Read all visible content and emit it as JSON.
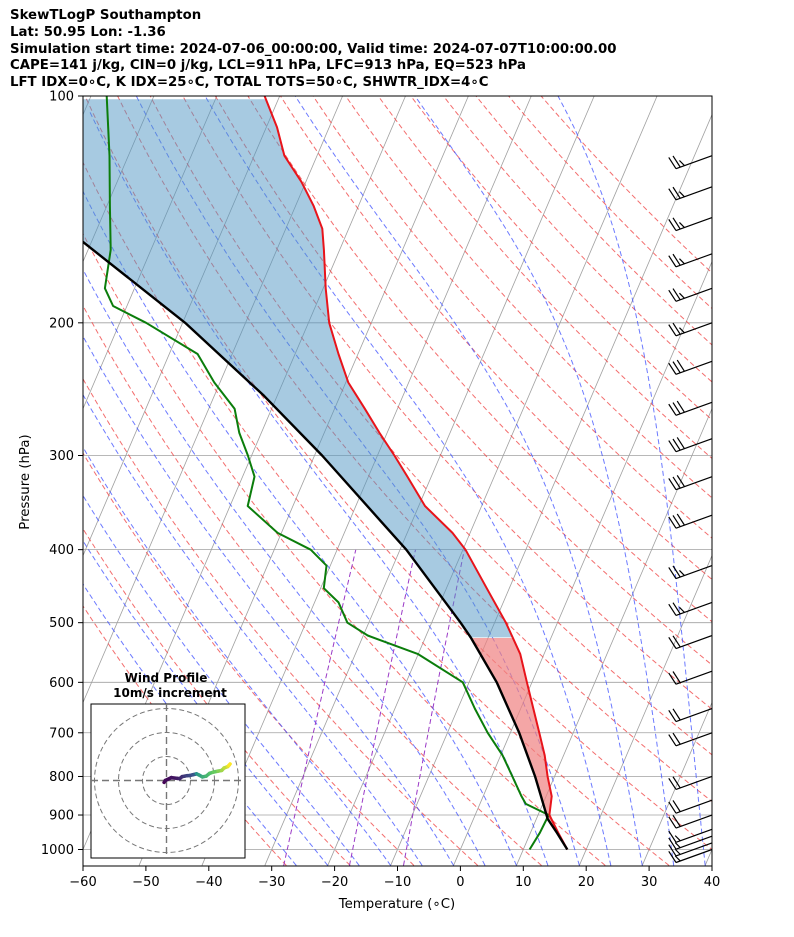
{
  "header": {
    "line1": "SkewTLogP Southampton",
    "line2": "Lat: 50.95   Lon: -1.36",
    "line3": "Simulation start time: 2024-07-06_00:00:00, Valid time: 2024-07-07T10:00:00.00",
    "line4": "CAPE=141 j/kg, CIN=0 j/kg, LCL=911 hPa, LFC=913 hPa, EQ=523 hPa",
    "line5": "LFT IDX=0∘C, K IDX=25∘C, TOTAL TOTS=50∘C, SHWTR_IDX=4∘C"
  },
  "chart_data": {
    "type": "line",
    "subtype": "skew-t log-p",
    "xlabel": "Temperature (∘C)",
    "ylabel": "Pressure (hPa)",
    "xlim": [
      -60,
      40
    ],
    "ylim": [
      1050,
      100
    ],
    "y_scale": "log",
    "grid": true,
    "x_ticks": [
      -60,
      -50,
      -40,
      -30,
      -20,
      -10,
      0,
      10,
      20,
      30,
      40
    ],
    "x_tick_labels": [
      "−60",
      "−50",
      "−40",
      "−30",
      "−20",
      "−10",
      "0",
      "10",
      "20",
      "30",
      "40"
    ],
    "y_ticks": [
      1000,
      900,
      800,
      700,
      600,
      500,
      400,
      300,
      200,
      100
    ],
    "y_tick_labels": [
      "1000",
      "900",
      "800",
      "700",
      "600",
      "500",
      "400",
      "300",
      "200",
      "100"
    ],
    "colors": {
      "temperature": "#e8141b",
      "dewpoint": "#0b7d0b",
      "parcel": "#000000",
      "cape_fill": "#f08080",
      "cin_fill": "#4f95c4",
      "dry_adiabat": "#f04a4a",
      "moist_adiabat": "#3b4dff",
      "mixing_ratio": "#9a39c6",
      "isotherm": "#a0a0a0",
      "isobar": "#a0a0a0"
    },
    "series": [
      {
        "key": "temperature",
        "pressure": [
          1000,
          950,
          900,
          850,
          800,
          750,
          700,
          650,
          600,
          550,
          500,
          450,
          400,
          380,
          350,
          320,
          300,
          280,
          260,
          240,
          220,
          200,
          180,
          160,
          150,
          140,
          130,
          120,
          110,
          100
        ],
        "values": [
          17.0,
          14.4,
          11.8,
          10.9,
          8.9,
          7.0,
          4.6,
          2.0,
          -0.8,
          -3.8,
          -8.2,
          -13.6,
          -19.6,
          -22.8,
          -29.0,
          -33.8,
          -37.3,
          -41.2,
          -45.2,
          -49.6,
          -53.1,
          -56.7,
          -59.6,
          -62.5,
          -64.2,
          -67.1,
          -70.7,
          -75.2,
          -78.3,
          -82.4
        ]
      },
      {
        "key": "dewpoint",
        "pressure": [
          1000,
          950,
          900,
          870,
          850,
          800,
          750,
          700,
          650,
          600,
          550,
          520,
          500,
          470,
          450,
          420,
          400,
          380,
          350,
          320,
          300,
          280,
          260,
          240,
          220,
          200,
          190,
          180,
          160,
          140,
          120,
          100
        ],
        "values": [
          11.0,
          11.5,
          11.7,
          7.3,
          6.1,
          3.3,
          0.3,
          -3.6,
          -7.3,
          -11.0,
          -20.1,
          -29.3,
          -33.4,
          -36.2,
          -39.5,
          -40.6,
          -44.2,
          -50.6,
          -57.2,
          -58.1,
          -60.6,
          -63.5,
          -65.9,
          -70.9,
          -75.5,
          -85.8,
          -92.2,
          -94.7,
          -96.4,
          -99.5,
          -103.0,
          -107.5
        ]
      },
      {
        "key": "parcel",
        "pressure": [
          1000,
          950,
          911,
          850,
          800,
          700,
          600,
          523,
          500,
          400,
          300,
          250,
          200,
          150,
          100
        ],
        "values": [
          17.0,
          14.2,
          11.8,
          9.2,
          6.9,
          1.4,
          -5.6,
          -12.8,
          -15.4,
          -29.0,
          -48.8,
          -62.1,
          -79.6,
          -104.9,
          -144.9
        ]
      }
    ],
    "hodograph": {
      "title": "Wind Profile",
      "subtitle": "10m/s increment",
      "u": [
        -1.0,
        -0.5,
        2.0,
        4.5,
        5.5,
        6.5,
        7.5,
        8.5,
        9.8,
        11.0,
        11.8,
        12.5,
        13.5,
        15.0,
        16.5,
        18.0,
        19.5,
        21.5,
        23.0,
        24.0,
        25.5,
        26.0,
        26.5
      ],
      "v": [
        -0.8,
        0.0,
        1.2,
        0.9,
        0.8,
        1.6,
        1.8,
        2.0,
        2.1,
        2.4,
        2.6,
        2.8,
        2.3,
        1.5,
        1.8,
        3.0,
        3.5,
        3.9,
        4.2,
        5.2,
        5.8,
        6.3,
        6.9
      ]
    },
    "wind_barbs": [
      {
        "p": 1000,
        "speed": 15
      },
      {
        "p": 980,
        "speed": 15
      },
      {
        "p": 960,
        "speed": 15
      },
      {
        "p": 940,
        "speed": 15
      },
      {
        "p": 900,
        "speed": 20
      },
      {
        "p": 860,
        "speed": 20
      },
      {
        "p": 800,
        "speed": 20
      },
      {
        "p": 700,
        "speed": 20
      },
      {
        "p": 650,
        "speed": 20
      },
      {
        "p": 580,
        "speed": 20
      },
      {
        "p": 520,
        "speed": 20
      },
      {
        "p": 470,
        "speed": 25
      },
      {
        "p": 420,
        "speed": 25
      },
      {
        "p": 360,
        "speed": 30
      },
      {
        "p": 320,
        "speed": 30
      },
      {
        "p": 285,
        "speed": 30
      },
      {
        "p": 255,
        "speed": 30
      },
      {
        "p": 225,
        "speed": 30
      },
      {
        "p": 200,
        "speed": 25
      },
      {
        "p": 180,
        "speed": 25
      },
      {
        "p": 162,
        "speed": 25
      },
      {
        "p": 145,
        "speed": 25
      },
      {
        "p": 132,
        "speed": 25
      },
      {
        "p": 120,
        "speed": 25
      }
    ]
  }
}
